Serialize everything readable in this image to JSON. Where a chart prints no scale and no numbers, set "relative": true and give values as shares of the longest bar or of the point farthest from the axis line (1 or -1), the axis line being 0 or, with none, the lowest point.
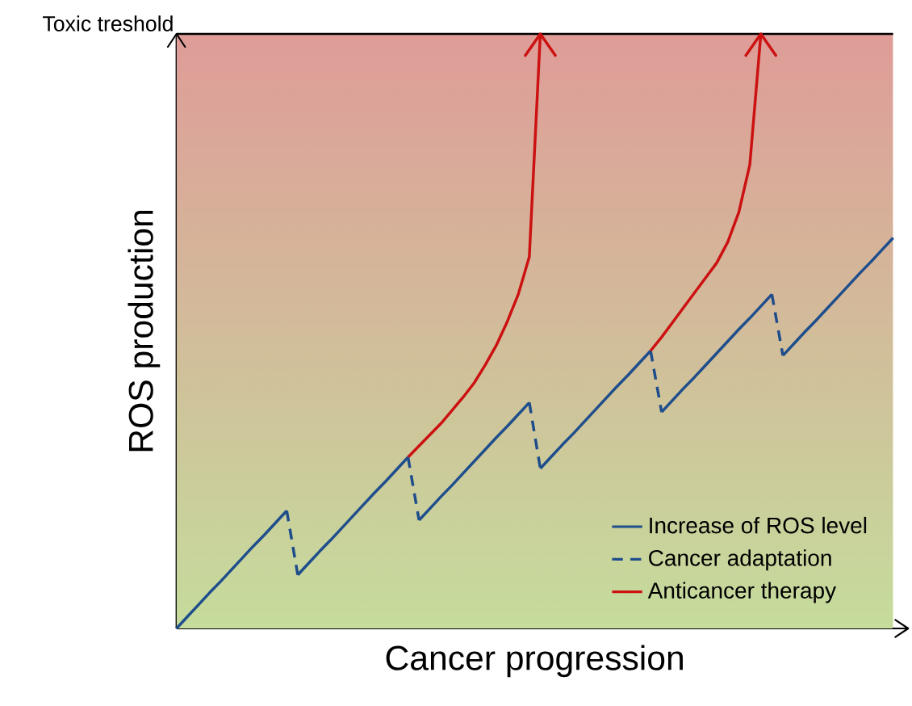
{
  "chart_data": {
    "type": "line",
    "relative": true,
    "xlabel": "Cancer progression",
    "ylabel": "ROS production",
    "marker": "none",
    "legend": "bottom right",
    "ref_lines": [
      {
        "axis": "y",
        "value": 1,
        "label": "Toxic treshold",
        "color": "#000000"
      }
    ],
    "categories": [
      null,
      null,
      null,
      null,
      null,
      null,
      null,
      null,
      null,
      null,
      null,
      null,
      null,
      null,
      null,
      null,
      null,
      null,
      null,
      null,
      null,
      null,
      null,
      null,
      null,
      null,
      null,
      null,
      null,
      null,
      null,
      null,
      null,
      null,
      null,
      null,
      null,
      null,
      null,
      null,
      null,
      null,
      null,
      null,
      null,
      null,
      null,
      null,
      null,
      null,
      null,
      null,
      null,
      null,
      null,
      null,
      null,
      null,
      null,
      null,
      null,
      null,
      null,
      null,
      null,
      null
    ],
    "series": [
      {
        "name": "Increase of ROS level",
        "color": "#1f4e8c",
        "line_style": "solid",
        "values": [
          0,
          0.02,
          0.04,
          0.06,
          0.079,
          0.099,
          0.119,
          0.139,
          0.158,
          0.178,
          0.198,
          null,
          null,
          null,
          null,
          null,
          null,
          null,
          null,
          null,
          null,
          null,
          null,
          null,
          null,
          null,
          null,
          null,
          null,
          null,
          null,
          null,
          null,
          null,
          null,
          null,
          null,
          null,
          null,
          null,
          null,
          null,
          null,
          null,
          null,
          null,
          null,
          null,
          null,
          null,
          null,
          null,
          null,
          null,
          null,
          null,
          null,
          null,
          null,
          null,
          null,
          null,
          null,
          null,
          null,
          null
        ]
      },
      {
        "name": "Cancer adaptation",
        "color": "#1e4d8b",
        "line_style": "dashed",
        "values": [
          null,
          null,
          null,
          null,
          null,
          null,
          null,
          null,
          null,
          null,
          0.198,
          0.09,
          null,
          null,
          null,
          null,
          null,
          null,
          null,
          null,
          null,
          null,
          null,
          null,
          null,
          null,
          null,
          null,
          null,
          null,
          null,
          null,
          null,
          null,
          null,
          null,
          null,
          null,
          null,
          null,
          null,
          null,
          null,
          null,
          null,
          null,
          null,
          null,
          null,
          null,
          null,
          null,
          null,
          null,
          null,
          null,
          null,
          null,
          null,
          null,
          null,
          null,
          null,
          null,
          null,
          null
        ]
      },
      {
        "name": "Anticancer therapy",
        "color": "#cc1111",
        "line_style": "solid",
        "values": [
          null,
          null,
          null,
          null,
          null,
          null,
          null,
          null,
          null,
          null,
          null,
          null,
          null,
          null,
          null,
          null,
          null,
          null,
          null,
          null,
          null,
          0.288,
          0.307,
          0.326,
          0.345,
          0.367,
          0.389,
          0.413,
          0.443,
          0.476,
          0.516,
          0.562,
          0.625,
          1.0,
          null,
          null,
          null,
          null,
          null,
          null,
          null,
          null,
          null,
          null,
          null,
          null,
          null,
          null,
          null,
          null,
          null,
          null,
          null,
          null,
          null,
          null,
          null,
          null,
          null,
          null,
          null,
          null,
          null,
          null,
          null,
          null
        ]
      },
      {
        "color": "#1f4e8c",
        "line_style": "solid",
        "values": [
          null,
          null,
          null,
          null,
          null,
          null,
          null,
          null,
          null,
          null,
          null,
          0.09,
          0.11,
          0.13,
          0.149,
          0.169,
          0.189,
          0.209,
          0.229,
          0.248,
          0.268,
          0.288,
          null,
          null,
          null,
          null,
          null,
          null,
          null,
          null,
          null,
          null,
          null,
          null,
          null,
          null,
          null,
          null,
          null,
          null,
          null,
          null,
          null,
          null,
          null,
          null,
          null,
          null,
          null,
          null,
          null,
          null,
          null,
          null,
          null,
          null,
          null,
          null,
          null,
          null,
          null,
          null,
          null,
          null,
          null,
          null
        ]
      },
      {
        "color": "#1f4e8c",
        "line_style": "solid",
        "values": [
          null,
          null,
          null,
          null,
          null,
          null,
          null,
          null,
          null,
          null,
          null,
          null,
          null,
          null,
          null,
          null,
          null,
          null,
          null,
          null,
          null,
          null,
          0.182,
          0.202,
          0.222,
          0.241,
          0.261,
          0.281,
          0.301,
          0.321,
          0.34,
          0.36,
          0.38,
          null,
          null,
          null,
          null,
          null,
          null,
          null,
          null,
          null,
          null,
          null,
          null,
          null,
          null,
          null,
          null,
          null,
          null,
          null,
          null,
          null,
          null,
          null,
          null,
          null,
          null,
          null,
          null,
          null,
          null,
          null,
          null,
          null
        ]
      },
      {
        "color": "#1f4e8c",
        "line_style": "solid",
        "values": [
          null,
          null,
          null,
          null,
          null,
          null,
          null,
          null,
          null,
          null,
          null,
          null,
          null,
          null,
          null,
          null,
          null,
          null,
          null,
          null,
          null,
          null,
          null,
          null,
          null,
          null,
          null,
          null,
          null,
          null,
          null,
          null,
          null,
          0.269,
          0.289,
          0.309,
          0.328,
          0.348,
          0.368,
          0.388,
          0.408,
          0.427,
          0.447,
          0.467,
          null,
          null,
          null,
          null,
          null,
          null,
          null,
          null,
          null,
          null,
          null,
          null,
          null,
          null,
          null,
          null,
          null,
          null,
          null,
          null,
          null,
          null
        ]
      },
      {
        "color": "#1f4e8c",
        "line_style": "solid",
        "values": [
          null,
          null,
          null,
          null,
          null,
          null,
          null,
          null,
          null,
          null,
          null,
          null,
          null,
          null,
          null,
          null,
          null,
          null,
          null,
          null,
          null,
          null,
          null,
          null,
          null,
          null,
          null,
          null,
          null,
          null,
          null,
          null,
          null,
          null,
          null,
          null,
          null,
          null,
          null,
          null,
          null,
          null,
          null,
          null,
          0.364,
          0.384,
          0.404,
          0.423,
          0.443,
          0.463,
          0.483,
          0.503,
          0.522,
          0.542,
          0.562,
          null,
          null,
          null,
          null,
          null,
          null,
          null,
          null,
          null,
          null,
          null
        ]
      },
      {
        "color": "#1f4e8c",
        "line_style": "solid",
        "values": [
          null,
          null,
          null,
          null,
          null,
          null,
          null,
          null,
          null,
          null,
          null,
          null,
          null,
          null,
          null,
          null,
          null,
          null,
          null,
          null,
          null,
          null,
          null,
          null,
          null,
          null,
          null,
          null,
          null,
          null,
          null,
          null,
          null,
          null,
          null,
          null,
          null,
          null,
          null,
          null,
          null,
          null,
          null,
          null,
          null,
          null,
          null,
          null,
          null,
          null,
          null,
          null,
          null,
          null,
          null,
          0.459,
          0.479,
          0.499,
          0.518,
          0.538,
          0.558,
          0.578,
          0.598,
          0.617,
          0.637,
          0.657
        ]
      },
      {
        "color": "#1e4d8b",
        "line_style": "dashed",
        "values": [
          null,
          null,
          null,
          null,
          null,
          null,
          null,
          null,
          null,
          null,
          null,
          null,
          null,
          null,
          null,
          null,
          null,
          null,
          null,
          null,
          null,
          0.288,
          0.182,
          null,
          null,
          null,
          null,
          null,
          null,
          null,
          null,
          null,
          null,
          null,
          null,
          null,
          null,
          null,
          null,
          null,
          null,
          null,
          null,
          null,
          null,
          null,
          null,
          null,
          null,
          null,
          null,
          null,
          null,
          null,
          null,
          null,
          null,
          null,
          null,
          null,
          null,
          null,
          null,
          null,
          null,
          null
        ]
      },
      {
        "color": "#1e4d8b",
        "line_style": "dashed",
        "values": [
          null,
          null,
          null,
          null,
          null,
          null,
          null,
          null,
          null,
          null,
          null,
          null,
          null,
          null,
          null,
          null,
          null,
          null,
          null,
          null,
          null,
          null,
          null,
          null,
          null,
          null,
          null,
          null,
          null,
          null,
          null,
          null,
          0.38,
          0.269,
          null,
          null,
          null,
          null,
          null,
          null,
          null,
          null,
          null,
          null,
          null,
          null,
          null,
          null,
          null,
          null,
          null,
          null,
          null,
          null,
          null,
          null,
          null,
          null,
          null,
          null,
          null,
          null,
          null,
          null,
          null,
          null
        ]
      },
      {
        "color": "#1e4d8b",
        "line_style": "dashed",
        "values": [
          null,
          null,
          null,
          null,
          null,
          null,
          null,
          null,
          null,
          null,
          null,
          null,
          null,
          null,
          null,
          null,
          null,
          null,
          null,
          null,
          null,
          null,
          null,
          null,
          null,
          null,
          null,
          null,
          null,
          null,
          null,
          null,
          null,
          null,
          null,
          null,
          null,
          null,
          null,
          null,
          null,
          null,
          null,
          0.467,
          0.364,
          null,
          null,
          null,
          null,
          null,
          null,
          null,
          null,
          null,
          null,
          null,
          null,
          null,
          null,
          null,
          null,
          null,
          null,
          null,
          null,
          null
        ]
      },
      {
        "color": "#1e4d8b",
        "line_style": "dashed",
        "values": [
          null,
          null,
          null,
          null,
          null,
          null,
          null,
          null,
          null,
          null,
          null,
          null,
          null,
          null,
          null,
          null,
          null,
          null,
          null,
          null,
          null,
          null,
          null,
          null,
          null,
          null,
          null,
          null,
          null,
          null,
          null,
          null,
          null,
          null,
          null,
          null,
          null,
          null,
          null,
          null,
          null,
          null,
          null,
          null,
          null,
          null,
          null,
          null,
          null,
          null,
          null,
          null,
          null,
          null,
          0.562,
          0.459,
          null,
          null,
          null,
          null,
          null,
          null,
          null,
          null,
          null,
          null
        ]
      },
      {
        "color": "#cc1111",
        "line_style": "solid",
        "values": [
          null,
          null,
          null,
          null,
          null,
          null,
          null,
          null,
          null,
          null,
          null,
          null,
          null,
          null,
          null,
          null,
          null,
          null,
          null,
          null,
          null,
          null,
          null,
          null,
          null,
          null,
          null,
          null,
          null,
          null,
          null,
          null,
          null,
          null,
          null,
          null,
          null,
          null,
          null,
          null,
          null,
          null,
          null,
          0.467,
          0.49,
          0.515,
          0.54,
          0.565,
          0.59,
          0.615,
          0.65,
          0.7,
          0.78,
          1.0,
          null,
          null,
          null,
          null,
          null,
          null,
          null,
          null,
          null,
          null,
          null,
          null
        ]
      }
    ]
  }
}
